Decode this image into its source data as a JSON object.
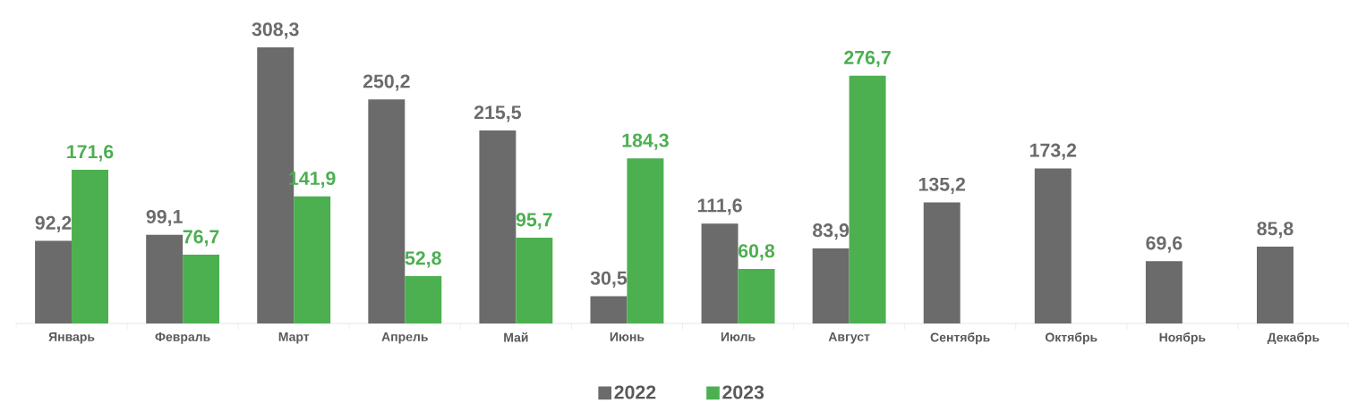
{
  "chart_data": {
    "type": "bar",
    "categories": [
      "Январь",
      "Февраль",
      "Март",
      "Апрель",
      "Май",
      "Июнь",
      "Июль",
      "Август",
      "Сентябрь",
      "Октябрь",
      "Ноябрь",
      "Декабрь"
    ],
    "series": [
      {
        "name": "2022",
        "color": "#6b6b6b",
        "values": [
          92.2,
          99.1,
          308.3,
          250.2,
          215.5,
          30.5,
          111.6,
          83.9,
          135.2,
          173.2,
          69.6,
          85.8
        ],
        "value_labels": [
          "92,2",
          "99,1",
          "308,3",
          "250,2",
          "215,5",
          "30,5",
          "111,6",
          "83,9",
          "135,2",
          "173,2",
          "69,6",
          "85,8"
        ]
      },
      {
        "name": "2023",
        "color": "#4caf50",
        "values": [
          171.6,
          76.7,
          141.9,
          52.8,
          95.7,
          184.3,
          60.8,
          276.7,
          null,
          null,
          null,
          null
        ],
        "value_labels": [
          "171,6",
          "76,7",
          "141,9",
          "52,8",
          "95,7",
          "184,3",
          "60,8",
          "276,7",
          null,
          null,
          null,
          null
        ]
      }
    ],
    "legend": "bottom",
    "grid": false
  }
}
